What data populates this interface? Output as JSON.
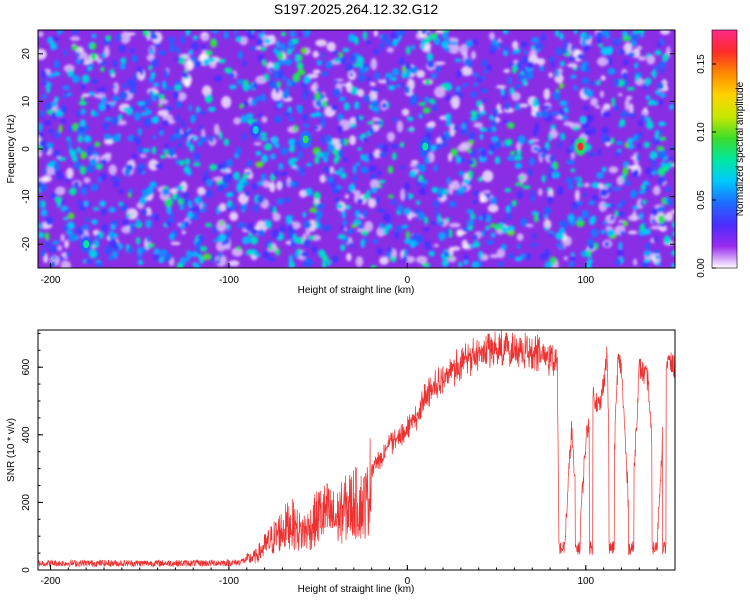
{
  "title": "S197.2025.264.12.32.G12",
  "chart_data": [
    {
      "type": "heatmap",
      "xlabel": "Height of straight line (km)",
      "ylabel": "Frequency (Hz)",
      "xlim": [
        -207,
        150
      ],
      "ylim": [
        -25,
        25
      ],
      "x_ticks": [
        -200,
        -100,
        0,
        100
      ],
      "x_tick_labels": [
        "-200",
        "-100",
        "0",
        "100"
      ],
      "y_ticks": [
        -20,
        -10,
        0,
        10,
        20
      ],
      "y_tick_labels": [
        "-20",
        "-10",
        "0",
        "10",
        "20"
      ],
      "colorbar": {
        "label": "Normalized spectral amplitude",
        "range": [
          0,
          0.175
        ],
        "ticks": [
          0,
          0.05,
          0.1,
          0.15
        ],
        "tick_labels": [
          "0.00",
          "0.05",
          "0.10",
          "0.15"
        ],
        "colormap": [
          "#ffffff",
          "#9a2bf0",
          "#4b2cff",
          "#1e6cff",
          "#00c8ff",
          "#00e8a0",
          "#3ddc2a",
          "#c8e800",
          "#ffd200",
          "#ff8a00",
          "#ff2a2a",
          "#ff2a8a"
        ]
      },
      "hotspots": [
        {
          "x": 97,
          "y": 0.5,
          "value": 0.16
        },
        {
          "x": -57,
          "y": 2,
          "value": 0.09
        },
        {
          "x": 10,
          "y": 0.5,
          "value": 0.08
        },
        {
          "x": -85,
          "y": 4,
          "value": 0.07
        },
        {
          "x": -180,
          "y": -20,
          "value": 0.08
        }
      ]
    },
    {
      "type": "line",
      "xlabel": "Height of straight line (km)",
      "ylabel": "SNR (10 * v/v)",
      "xlim": [
        -207,
        150
      ],
      "ylim": [
        0,
        710
      ],
      "x_ticks": [
        -200,
        -100,
        0,
        100
      ],
      "x_tick_labels": [
        "-200",
        "-100",
        "0",
        "100"
      ],
      "y_ticks": [
        0,
        200,
        400,
        600
      ],
      "y_tick_labels": [
        "0",
        "200",
        "400",
        "600"
      ],
      "line_color": "#ee3030",
      "series": [
        {
          "name": "SNR",
          "x": [
            -207,
            -180,
            -150,
            -120,
            -95,
            -85,
            -80,
            -70,
            -65,
            -60,
            -55,
            -50,
            -45,
            -40,
            -35,
            -30,
            -25,
            -22,
            -20,
            -15,
            -10,
            -5,
            0,
            5,
            10,
            15,
            20,
            30,
            40,
            50,
            60,
            70,
            75,
            80,
            84,
            85,
            88,
            92,
            96,
            100,
            104,
            108,
            112,
            114,
            118,
            120,
            125,
            130,
            135,
            140,
            145,
            150
          ],
          "y": [
            20,
            20,
            20,
            20,
            22,
            40,
            70,
            120,
            140,
            110,
            120,
            160,
            170,
            150,
            180,
            200,
            190,
            210,
            300,
            330,
            370,
            390,
            420,
            450,
            510,
            540,
            570,
            610,
            640,
            650,
            655,
            650,
            640,
            625,
            620,
            60,
            55,
            420,
            70,
            380,
            520,
            480,
            640,
            80,
            620,
            600,
            80,
            600,
            560,
            80,
            620,
            600
          ]
        }
      ],
      "dropout_intervals": [
        [
          85,
          88
        ],
        [
          94,
          97
        ],
        [
          102,
          104
        ],
        [
          113,
          116
        ],
        [
          124,
          127
        ],
        [
          137,
          140
        ],
        [
          143,
          145
        ]
      ]
    }
  ]
}
